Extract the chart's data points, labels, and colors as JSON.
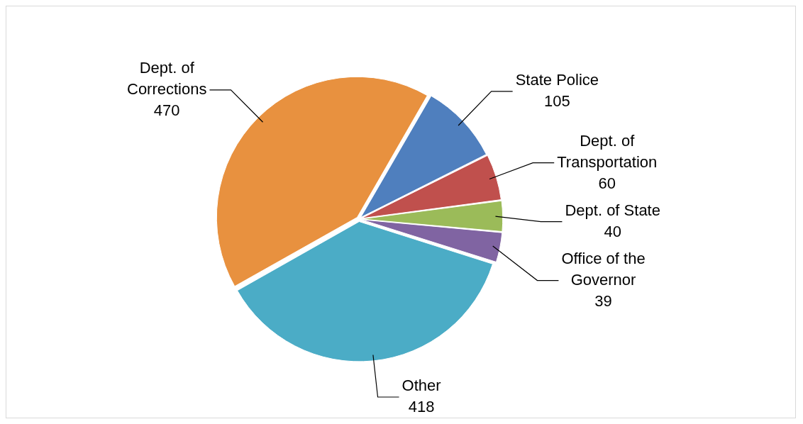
{
  "chart_data": {
    "type": "pie",
    "categories": [
      "State Police",
      "Dept. of Transportation",
      "Dept. of State",
      "Office of the Governor",
      "Other",
      "Dept. of Corrections"
    ],
    "values": [
      105,
      60,
      40,
      39,
      418,
      470
    ],
    "colors": [
      "#4f7fbe",
      "#c0504d",
      "#9bbb59",
      "#8064a2",
      "#4bacc6",
      "#e8913f"
    ],
    "data_labels": true,
    "legend": false
  }
}
